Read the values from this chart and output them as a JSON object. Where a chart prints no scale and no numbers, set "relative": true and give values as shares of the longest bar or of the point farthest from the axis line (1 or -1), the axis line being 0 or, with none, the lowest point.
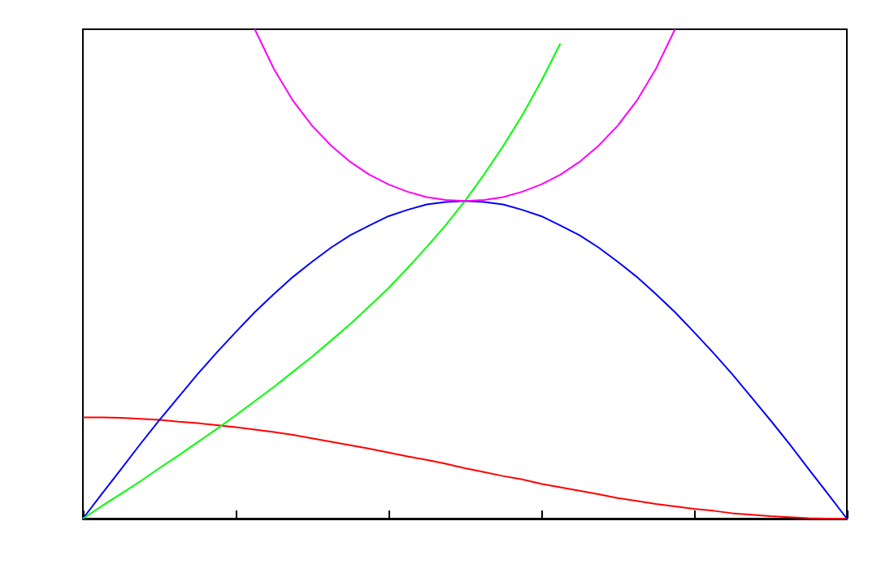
{
  "chart_data": {
    "type": "line",
    "relative": true,
    "grid": false,
    "marker": "none",
    "line_style": "solid",
    "categories": [
      null,
      null,
      null,
      null,
      null,
      null,
      null,
      null,
      null,
      null,
      null,
      null,
      null,
      null,
      null,
      null,
      null,
      null,
      null,
      null,
      null,
      null,
      null,
      null,
      null,
      null,
      null,
      null,
      null,
      null,
      null,
      null,
      null,
      null,
      null,
      null,
      null,
      null,
      null,
      null,
      null
    ],
    "series": [
      {
        "color": "#ff0000",
        "values": [
          0.207,
          0.207,
          0.206,
          0.204,
          0.202,
          0.198,
          0.195,
          0.191,
          0.187,
          0.182,
          0.177,
          0.171,
          0.164,
          0.157,
          0.15,
          0.143,
          0.135,
          0.127,
          0.12,
          0.112,
          0.103,
          0.095,
          0.087,
          0.08,
          0.071,
          0.064,
          0.057,
          0.05,
          0.042,
          0.036,
          0.03,
          0.025,
          0.02,
          0.016,
          0.011,
          0.008,
          0.005,
          0.003,
          0.001,
          0,
          0
        ]
      },
      {
        "color": "#0000ff",
        "values": [
          0,
          0.051,
          0.101,
          0.152,
          0.201,
          0.248,
          0.295,
          0.339,
          0.381,
          0.422,
          0.459,
          0.494,
          0.525,
          0.554,
          0.579,
          0.599,
          0.618,
          0.631,
          0.642,
          0.647,
          0.649,
          0.647,
          0.642,
          0.631,
          0.618,
          0.599,
          0.579,
          0.554,
          0.525,
          0.494,
          0.459,
          0.422,
          0.381,
          0.339,
          0.295,
          0.248,
          0.201,
          0.152,
          0.101,
          0.051,
          0
        ]
      },
      {
        "color": "#00ff00",
        "values": [
          0,
          0.026,
          0.051,
          0.076,
          0.103,
          0.129,
          0.156,
          0.183,
          0.211,
          0.24,
          0.269,
          0.3,
          0.331,
          0.364,
          0.398,
          0.434,
          0.471,
          0.512,
          0.555,
          0.6,
          0.649,
          0.703,
          0.761,
          0.824,
          0.894,
          0.971,
          null,
          null,
          null,
          null,
          null,
          null,
          null,
          null,
          null,
          null,
          null,
          null,
          null,
          null,
          null
        ]
      },
      {
        "color": "#ff00ff",
        "values": [
          null,
          null,
          null,
          null,
          null,
          null,
          null,
          null,
          null,
          1.0,
          0.919,
          0.854,
          0.803,
          0.762,
          0.729,
          0.703,
          0.683,
          0.668,
          0.657,
          0.651,
          0.649,
          0.651,
          0.657,
          0.668,
          0.683,
          0.703,
          0.729,
          0.762,
          0.803,
          0.854,
          0.919,
          1.0,
          null,
          null,
          null,
          null,
          null,
          null,
          null,
          null,
          null
        ]
      }
    ]
  }
}
